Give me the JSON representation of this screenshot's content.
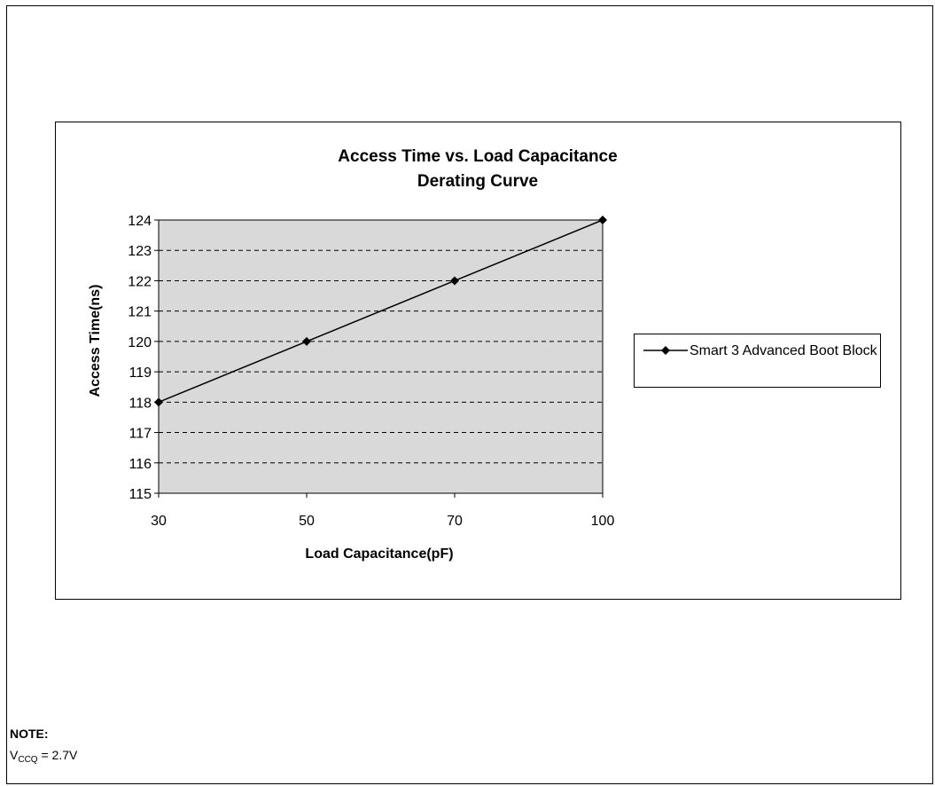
{
  "note": {
    "title": "NOTE:",
    "v_symbol": "V",
    "v_subscript": "CCQ",
    "v_value": " = 2.7V"
  },
  "chart_data": {
    "type": "line",
    "title_line1": "Access Time vs. Load Capacitance",
    "title_line2": "Derating Curve",
    "xlabel": "Load Capacitance(pF)",
    "ylabel": "Access Time(ns)",
    "categories": [
      "30",
      "50",
      "70",
      "100"
    ],
    "series": [
      {
        "name": "Smart 3 Advanced Boot Block",
        "values": [
          118,
          120,
          122,
          124
        ]
      }
    ],
    "ylim": [
      115,
      124
    ],
    "yticks": [
      115,
      116,
      117,
      118,
      119,
      120,
      121,
      122,
      123,
      124
    ],
    "grid": "horizontal dashed",
    "legend_position": "right",
    "plot_background": "#d9d9d9",
    "line_color": "#000000",
    "marker": "diamond"
  }
}
